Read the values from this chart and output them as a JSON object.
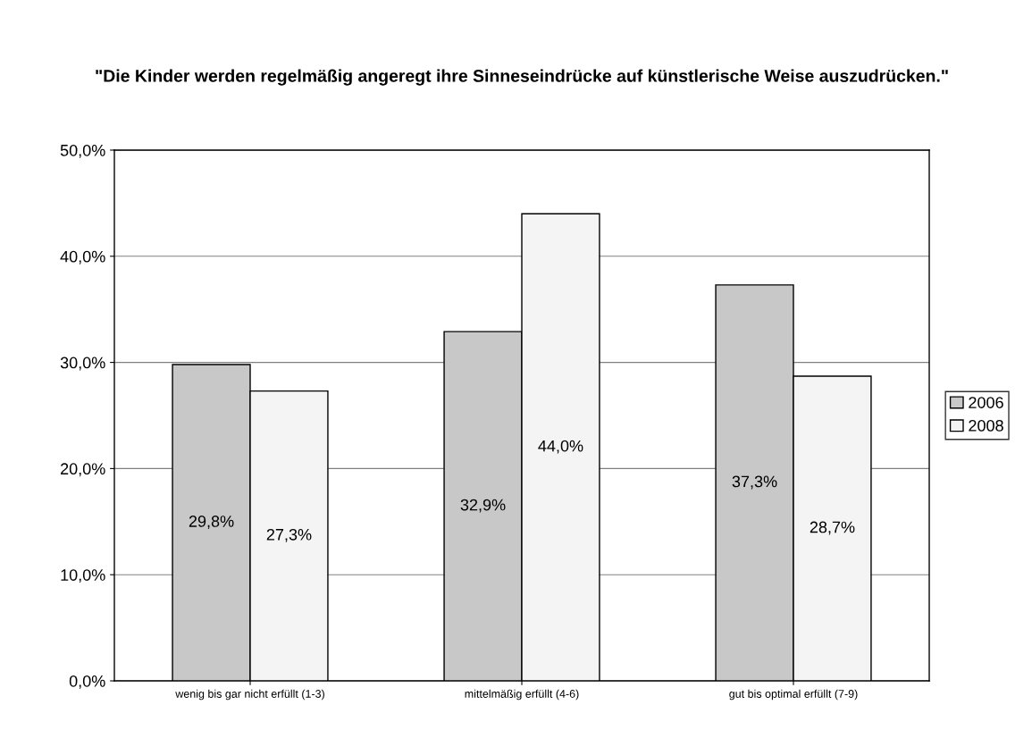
{
  "chart_data": {
    "type": "bar",
    "title": "\"Die Kinder werden regelmäßig angeregt ihre Sinneseindrücke auf künstlerische Weise auszudrücken.\"",
    "categories": [
      "wenig bis gar nicht erfüllt (1-3)",
      "mittelmäßig erfüllt (4-6)",
      "gut bis optimal erfüllt (7-9)"
    ],
    "series": [
      {
        "name": "2006",
        "color": "#c8c8c8",
        "values": [
          29.8,
          32.9,
          37.3
        ],
        "value_labels": [
          "29,8%",
          "32,9%",
          "37,3%"
        ]
      },
      {
        "name": "2008",
        "color": "#f4f4f4",
        "values": [
          27.3,
          44.0,
          28.7
        ],
        "value_labels": [
          "27,3%",
          "44,0%",
          "28,7%"
        ]
      }
    ],
    "ylim": [
      0,
      50
    ],
    "yticks": [
      {
        "value": 0,
        "label": "0,0%"
      },
      {
        "value": 10,
        "label": "10,0%"
      },
      {
        "value": 20,
        "label": "20,0%"
      },
      {
        "value": 30,
        "label": "30,0%"
      },
      {
        "value": 40,
        "label": "40,0%"
      },
      {
        "value": 50,
        "label": "50,0%"
      }
    ],
    "grid": "y",
    "legend": "right"
  }
}
